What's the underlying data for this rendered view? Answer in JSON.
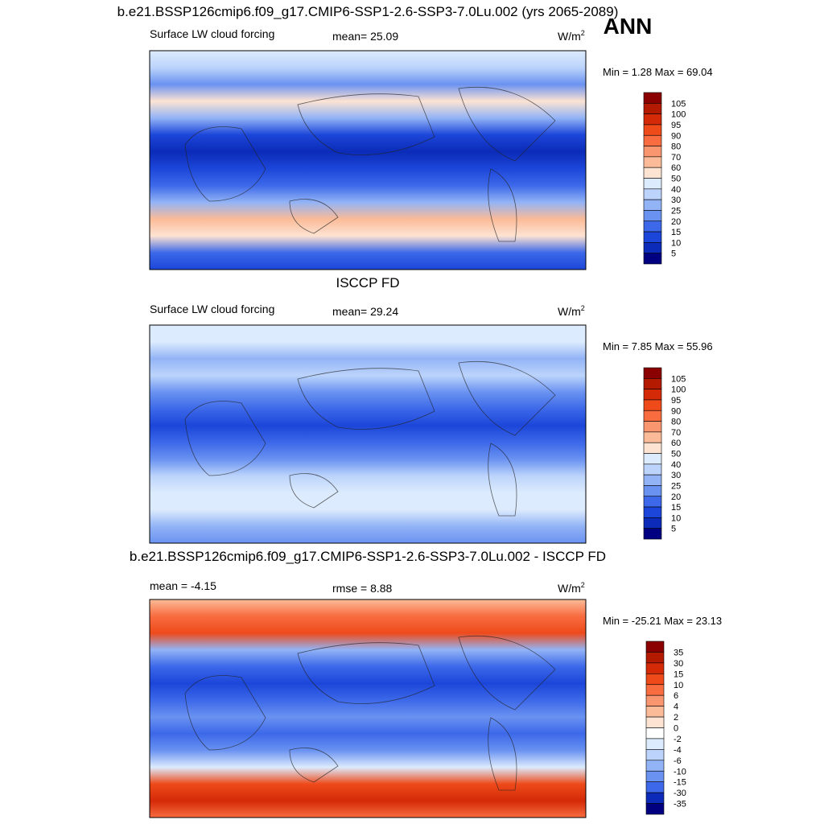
{
  "header": {
    "title": "b.e21.BSSP126cmip6.f09_g17.CMIP6-SSP1-2.6-SSP3-7.0Lu.002 (yrs 2065-2089)",
    "season": "ANN"
  },
  "panels": [
    {
      "left": "Surface LW cloud forcing",
      "center": "mean=  25.09",
      "units": {
        "base": "W/m",
        "sup": "2"
      },
      "minmax": "Min =   1.28 Max =  69.04",
      "levels": [
        "105",
        "100",
        "95",
        "90",
        "80",
        "70",
        "60",
        "50",
        "40",
        "30",
        "25",
        "20",
        "15",
        "10",
        "5"
      ],
      "colors": [
        "#8b0000",
        "#b31a00",
        "#d42a08",
        "#ee4a1a",
        "#f86c40",
        "#f99670",
        "#fbbb98",
        "#fde3d2",
        "#dcebfd",
        "#bcd4fb",
        "#92b3f6",
        "#6a92f1",
        "#3c68e9",
        "#1c46d9",
        "#0b2bb8",
        "#000080"
      ]
    },
    {
      "title": "ISCCP FD",
      "left": "Surface LW cloud forcing",
      "center": "mean=  29.24",
      "units": {
        "base": "W/m",
        "sup": "2"
      },
      "minmax": "Min =   7.85 Max =  55.96",
      "levels": [
        "105",
        "100",
        "95",
        "90",
        "80",
        "70",
        "60",
        "50",
        "40",
        "30",
        "25",
        "20",
        "15",
        "10",
        "5"
      ],
      "colors": [
        "#8b0000",
        "#b31a00",
        "#d42a08",
        "#ee4a1a",
        "#f86c40",
        "#f99670",
        "#fbbb98",
        "#fde3d2",
        "#dcebfd",
        "#bcd4fb",
        "#92b3f6",
        "#6a92f1",
        "#3c68e9",
        "#1c46d9",
        "#0b2bb8",
        "#000080"
      ]
    },
    {
      "title": "b.e21.BSSP126cmip6.f09_g17.CMIP6-SSP1-2.6-SSP3-7.0Lu.002 - ISCCP FD",
      "left": "mean =  -4.15",
      "center": "rmse =   8.88",
      "units": {
        "base": "W/m",
        "sup": "2"
      },
      "minmax": "Min = -25.21 Max =  23.13",
      "levels": [
        "35",
        "30",
        "15",
        "10",
        "6",
        "4",
        "2",
        "0",
        "-2",
        "-4",
        "-6",
        "-10",
        "-15",
        "-30",
        "-35"
      ],
      "colors": [
        "#8b0000",
        "#b31a00",
        "#d42a08",
        "#ee4a1a",
        "#f86c40",
        "#f99670",
        "#fbbb98",
        "#fde3d2",
        "#ffffff",
        "#dcebfd",
        "#bcd4fb",
        "#92b3f6",
        "#6a92f1",
        "#3c68e9",
        "#0b2bb8",
        "#000080"
      ]
    }
  ]
}
